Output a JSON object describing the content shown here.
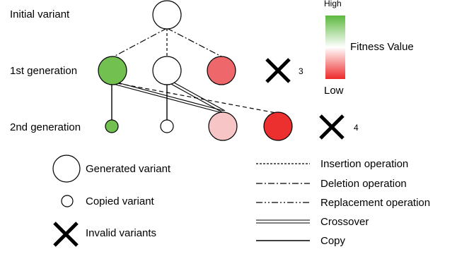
{
  "rows": {
    "initial": "Initial variant",
    "gen1": "1st generation",
    "gen2": "2nd generation"
  },
  "colorbar": {
    "high": "High",
    "low": "Low",
    "title": "Fitness Value",
    "top_color": "#5cb83e",
    "mid_color": "#ffffff",
    "bottom_color": "#ee2a2a"
  },
  "invalid_counts": {
    "gen1": "3",
    "gen2": "4"
  },
  "legend": {
    "generated": "Generated variant",
    "copied": "Copied variant",
    "invalid": "Invalid variants",
    "insertion": "Insertion operation",
    "deletion": "Deletion operation",
    "replacement": "Replacement operation",
    "crossover": "Crossover",
    "copy": "Copy"
  },
  "node_colors": {
    "green": "#72c04f",
    "white": "#ffffff",
    "red_mid": "#ee676b",
    "pink": "#f7c5c5",
    "red": "#ec2f2f"
  }
}
